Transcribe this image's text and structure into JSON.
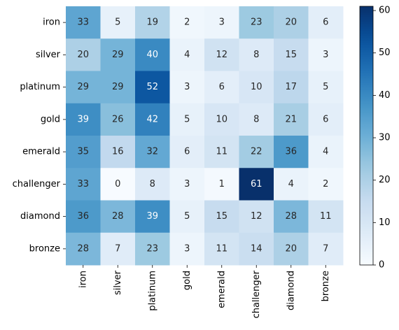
{
  "chart_data": {
    "type": "heatmap",
    "title": "",
    "xlabel": "",
    "ylabel": "",
    "x_categories": [
      "iron",
      "silver",
      "platinum",
      "gold",
      "emerald",
      "challenger",
      "diamond",
      "bronze"
    ],
    "y_categories": [
      "iron",
      "silver",
      "platinum",
      "gold",
      "emerald",
      "challenger",
      "diamond",
      "bronze"
    ],
    "values": [
      [
        33,
        5,
        19,
        2,
        3,
        23,
        20,
        6
      ],
      [
        20,
        29,
        40,
        4,
        12,
        8,
        15,
        3
      ],
      [
        29,
        29,
        52,
        3,
        6,
        10,
        17,
        5
      ],
      [
        39,
        26,
        42,
        5,
        10,
        8,
        21,
        6
      ],
      [
        35,
        16,
        32,
        6,
        11,
        22,
        36,
        4
      ],
      [
        33,
        0,
        8,
        3,
        1,
        61,
        4,
        2
      ],
      [
        36,
        28,
        39,
        5,
        15,
        12,
        28,
        11
      ],
      [
        28,
        7,
        23,
        3,
        11,
        14,
        20,
        7
      ]
    ],
    "colorbar": {
      "colormap": "Blues",
      "vmin": 0,
      "vmax": 61,
      "ticks": [
        0,
        10,
        20,
        30,
        40,
        50,
        60
      ]
    },
    "annotations": true
  }
}
